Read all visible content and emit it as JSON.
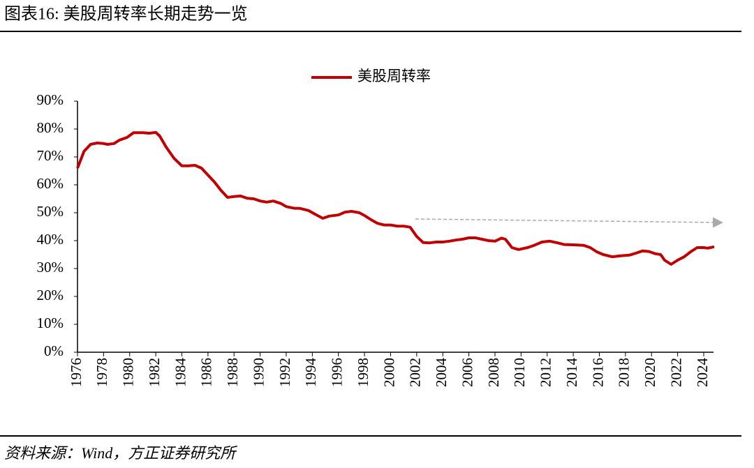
{
  "chart_data": {
    "type": "line",
    "title": "图表16: 美股周转率长期走势一览",
    "source": "资料来源：Wind，方正证券研究所",
    "x": [
      1976,
      1976.5,
      1977,
      1977.5,
      1978,
      1978.3,
      1978.8,
      1979.2,
      1979.8,
      1980.3,
      1981,
      1981.5,
      1982,
      1982.3,
      1982.8,
      1983.4,
      1984,
      1984.5,
      1985,
      1985.5,
      1986,
      1986.5,
      1987,
      1987.5,
      1988,
      1988.5,
      1989,
      1989.5,
      1990,
      1990.5,
      1991,
      1991.6,
      1992,
      1992.6,
      1993,
      1993.7,
      1994.2,
      1994.8,
      1995.3,
      1996,
      1996.5,
      1997,
      1997.6,
      1998,
      1998.5,
      1999,
      1999.5,
      2000,
      2000.5,
      2001,
      2001.5,
      2002,
      2002.5,
      2003,
      2003.5,
      2004,
      2004.5,
      2005,
      2005.5,
      2006,
      2006.5,
      2007,
      2007.5,
      2008,
      2008.5,
      2008.8,
      2009.3,
      2009.8,
      2010.5,
      2011,
      2011.6,
      2012.2,
      2012.8,
      2013.3,
      2014,
      2014.8,
      2015.3,
      2015.8,
      2016.3,
      2017,
      2017.5,
      2018.3,
      2018.8,
      2019.3,
      2019.8,
      2020.3,
      2020.7,
      2021,
      2021.5,
      2022,
      2022.5,
      2023,
      2023.5,
      2024,
      2024.3,
      2024.8
    ],
    "series": [
      {
        "name": "美股周转率",
        "color": "#c00000",
        "values": [
          66,
          72,
          74.5,
          75,
          74.8,
          74.5,
          74.8,
          76,
          77,
          78.7,
          78.7,
          78.5,
          78.8,
          77.5,
          73.5,
          69.5,
          66.8,
          66.8,
          67,
          66,
          63.5,
          61,
          58,
          55.5,
          55.8,
          56,
          55.2,
          55,
          54.2,
          53.8,
          54.2,
          53.3,
          52.2,
          51.6,
          51.6,
          50.8,
          49.5,
          48,
          48.8,
          49.2,
          50.2,
          50.5,
          50,
          49,
          47.5,
          46.2,
          45.6,
          45.6,
          45.2,
          45.2,
          44.8,
          41.5,
          39.3,
          39.2,
          39.5,
          39.5,
          39.8,
          40.2,
          40.5,
          41,
          41,
          40.5,
          40,
          39.8,
          40.9,
          40.5,
          37.5,
          36.8,
          37.5,
          38.3,
          39.5,
          39.8,
          39.2,
          38.6,
          38.5,
          38.3,
          37.5,
          36,
          35,
          34.2,
          34.5,
          34.8,
          35.5,
          36.3,
          36.1,
          35.3,
          35,
          33,
          31.5,
          33,
          34.2,
          36,
          37.5,
          37.5,
          37.3,
          37.8
        ]
      }
    ],
    "xlim": [
      1976,
      2024.75
    ],
    "xticks": [
      1976,
      1978,
      1980,
      1982,
      1984,
      1986,
      1988,
      1990,
      1992,
      1994,
      1996,
      1998,
      2000,
      2002,
      2004,
      2006,
      2008,
      2010,
      2012,
      2014,
      2016,
      2018,
      2020,
      2022,
      2024
    ],
    "ylim": [
      0,
      90
    ],
    "yticks": [
      {
        "value": 0,
        "label": "0%"
      },
      {
        "value": 10,
        "label": "10%"
      },
      {
        "value": 20,
        "label": "20%"
      },
      {
        "value": 30,
        "label": "30%"
      },
      {
        "value": 40,
        "label": "40%"
      },
      {
        "value": 50,
        "label": "50%"
      },
      {
        "value": 60,
        "label": "60%"
      },
      {
        "value": 70,
        "label": "70%"
      },
      {
        "value": 80,
        "label": "80%"
      },
      {
        "value": 90,
        "label": "90%"
      }
    ],
    "grid": false
  }
}
